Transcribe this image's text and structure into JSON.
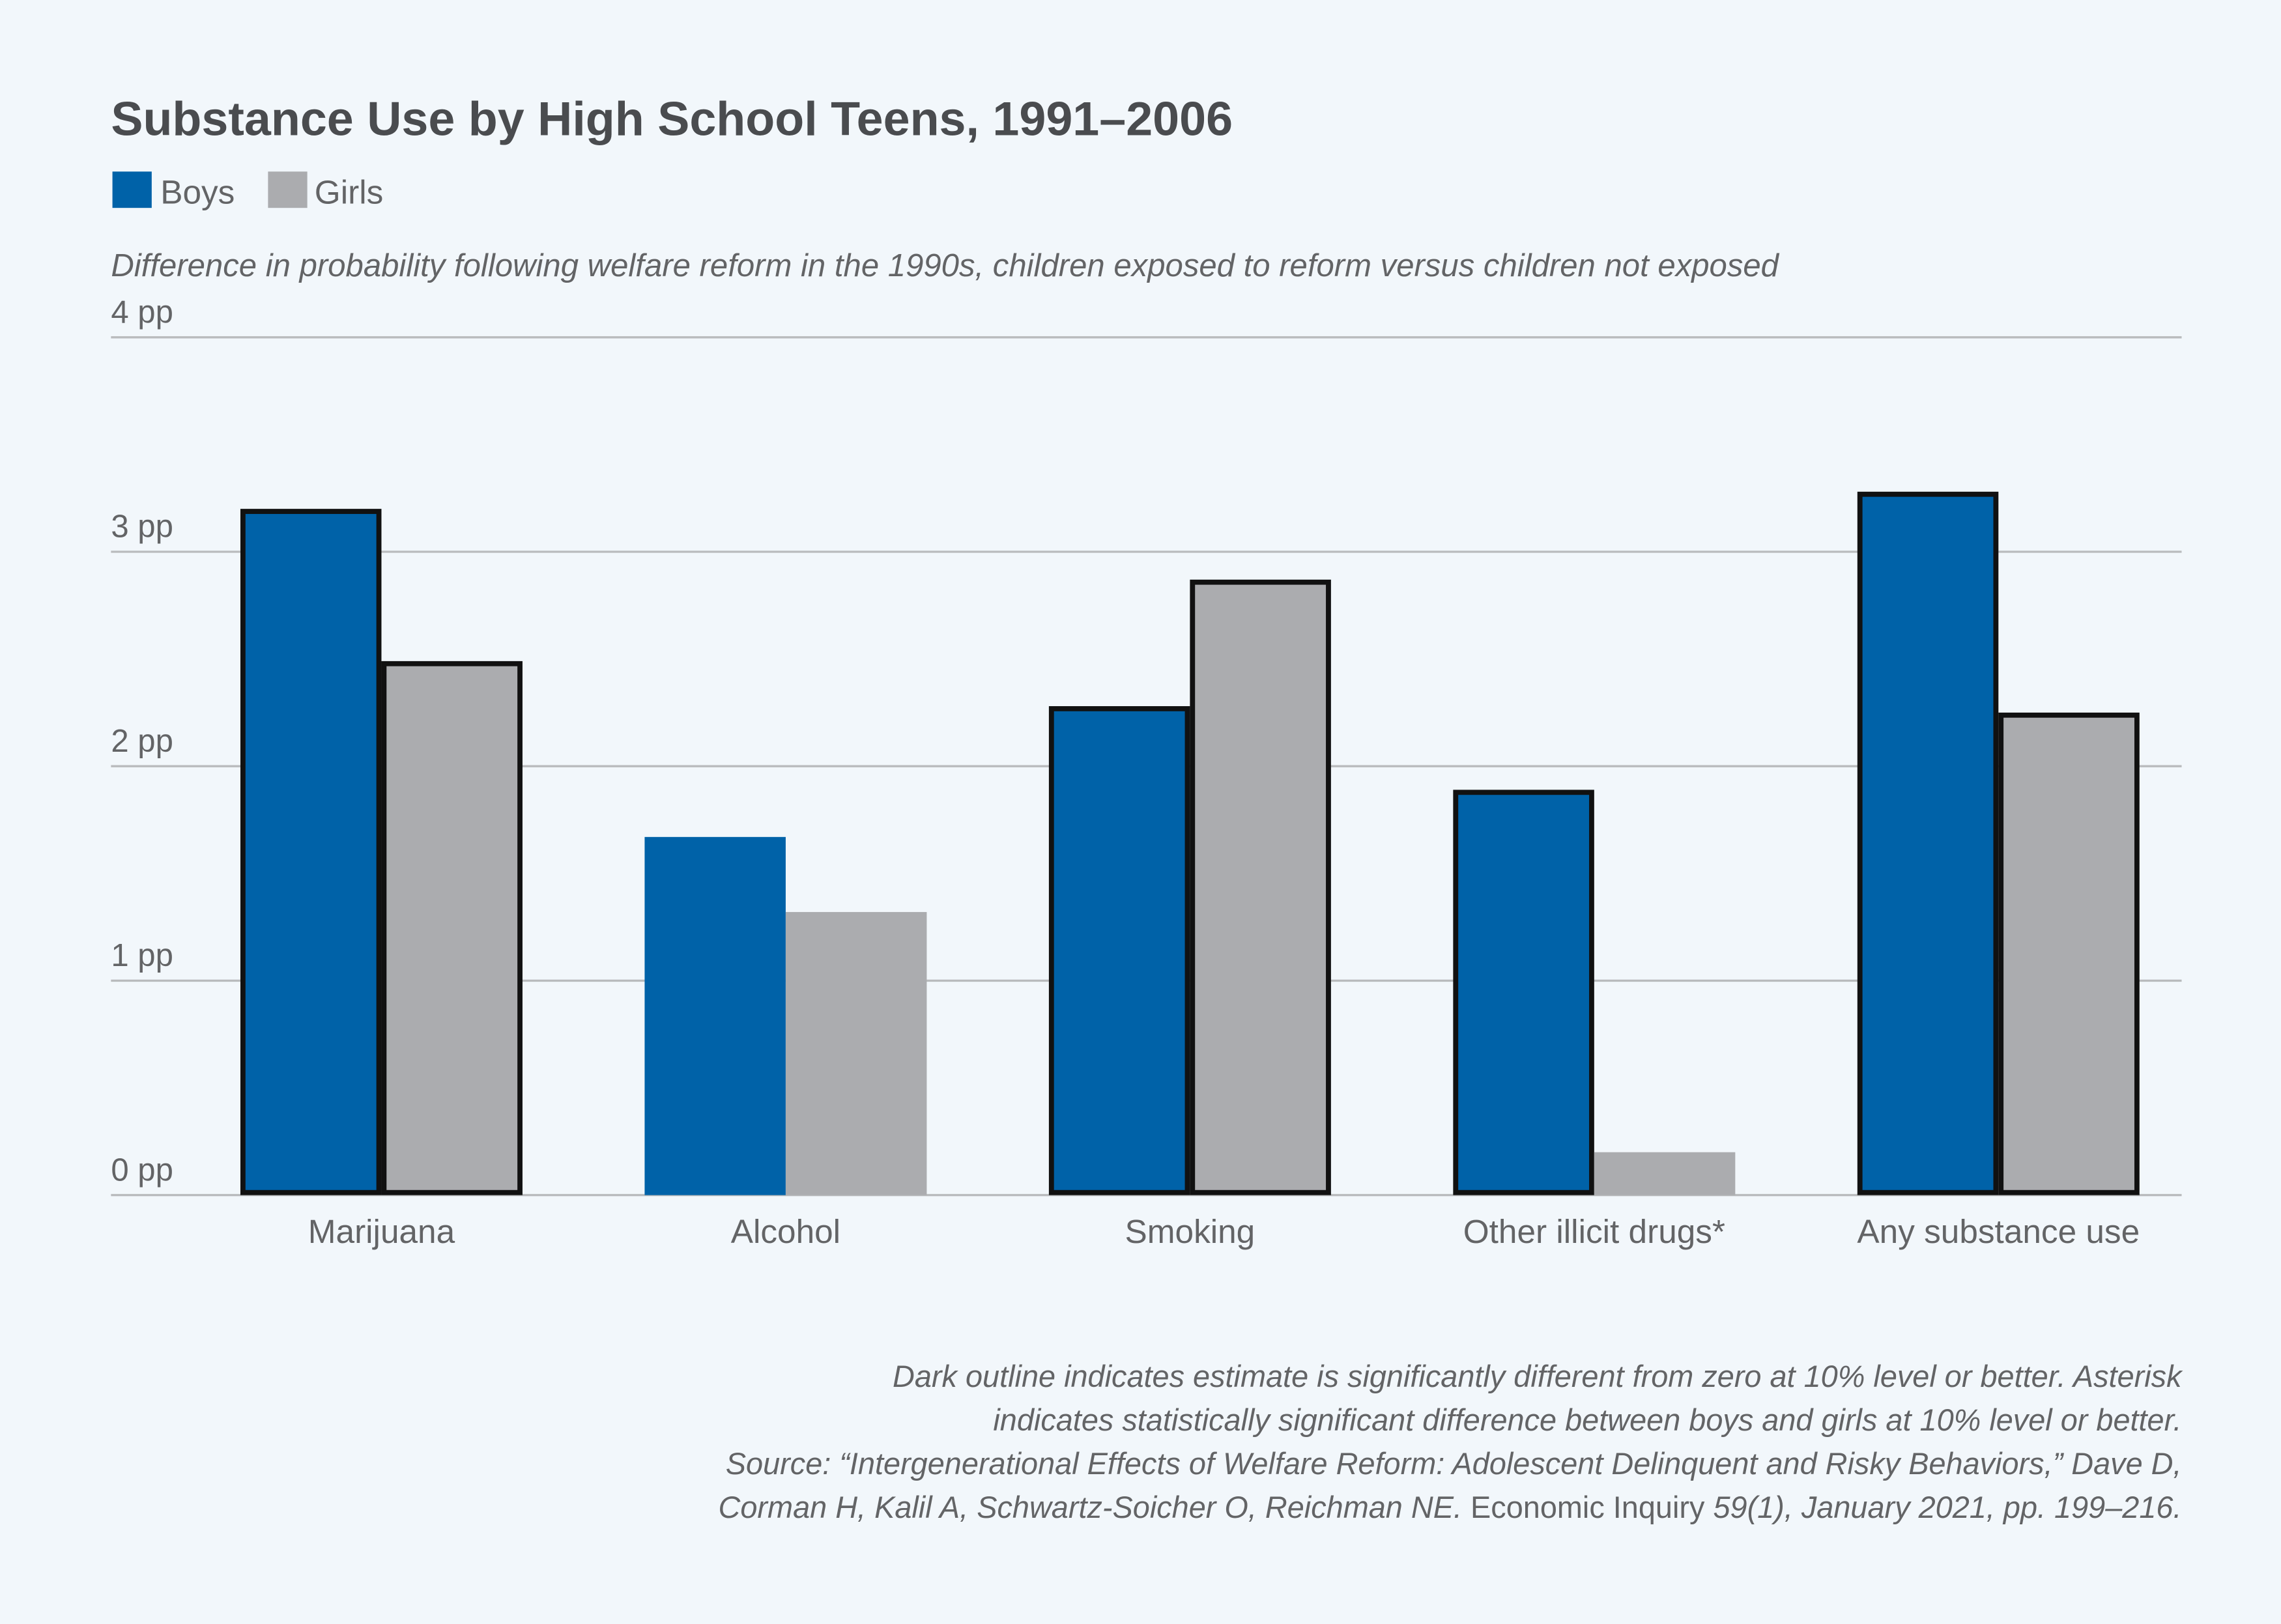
{
  "chart_data": {
    "type": "bar",
    "title": "Substance Use by High School Teens, 1991–2006",
    "subtitle": "Difference in probability following welfare reform in the 1990s, children exposed to reform versus children not exposed",
    "categories": [
      "Marijuana",
      "Alcohol",
      "Smoking",
      "Other illicit drugs*",
      "Any substance use"
    ],
    "series": [
      {
        "name": "Boys",
        "color": "#0062a8",
        "values": [
          3.2,
          1.67,
          2.28,
          1.89,
          3.28
        ],
        "significant": [
          true,
          false,
          true,
          true,
          true
        ]
      },
      {
        "name": "Girls",
        "color": "#abacaf",
        "values": [
          2.49,
          1.32,
          2.87,
          0.2,
          2.25
        ],
        "significant": [
          true,
          false,
          true,
          false,
          true
        ]
      }
    ],
    "ylim": [
      0,
      4
    ],
    "yticks": [
      0,
      1,
      2,
      3,
      4
    ],
    "ytick_labels": [
      "0 pp",
      "1 pp",
      "2 pp",
      "3 pp",
      "4 pp"
    ],
    "grid": true,
    "legend_position": "top-left",
    "outline_color": "#111111",
    "notes": {
      "line1": "Dark outline indicates estimate is significantly different from zero at 10% level or better. Asterisk",
      "line2": "indicates statistically significant difference between boys and girls at 10% level or better.",
      "line3": "Source: “Intergenerational Effects of Welfare Reform: Adolescent Delinquent and Risky Behaviors,” Dave D,",
      "line4a": "Corman H, Kalil A, Schwartz-Soicher O, Reichman NE. ",
      "line4b": "Economic Inquiry",
      "line4c": " 59(1), January 2021, pp. 199–216."
    }
  }
}
